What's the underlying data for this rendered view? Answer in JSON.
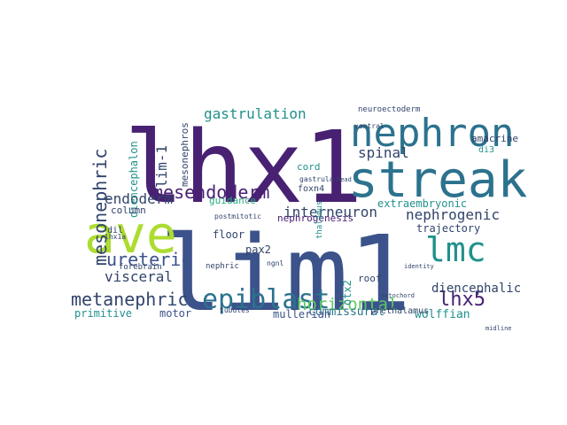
{
  "palette": {
    "dark_purple": "#482173",
    "indigo": "#3b528b",
    "navy": "#31446b",
    "teal_blue": "#2c728e",
    "teal": "#21918c",
    "green_teal": "#28ae80",
    "green": "#5ec962",
    "lime": "#addc30",
    "deep": "#440154"
  },
  "words": [
    "lim1",
    "lhx1",
    "ave",
    "streak",
    "nephron",
    "lmc",
    "epiblast",
    "mesendoderm",
    "lhx5",
    "lim-1",
    "mesonephric",
    "ureteric",
    "metanephric",
    "gastrulation",
    "nephrogenic",
    "horizontal",
    "visceral",
    "endoderm",
    "interneuron",
    "spinal",
    "diencephalic",
    "commissural",
    "wolffian",
    "mullerian",
    "primitive",
    "motor",
    "trajectory",
    "extraembryonic",
    "diencephalon",
    "mesonephros",
    "amacrine",
    "nephrogenesis",
    "guidance",
    "floor",
    "pax2",
    "column",
    "foxn4",
    "cord",
    "roof",
    "otx2",
    "prethalamus",
    "forebrain",
    "nephric",
    "dil",
    "di3",
    "lhx1a",
    "thalamus",
    "neuroectoderm",
    "ventral",
    "tubules",
    "ngnl",
    "postmitotic",
    "gastrula",
    "head",
    "identity",
    "notochord",
    "midline"
  ]
}
